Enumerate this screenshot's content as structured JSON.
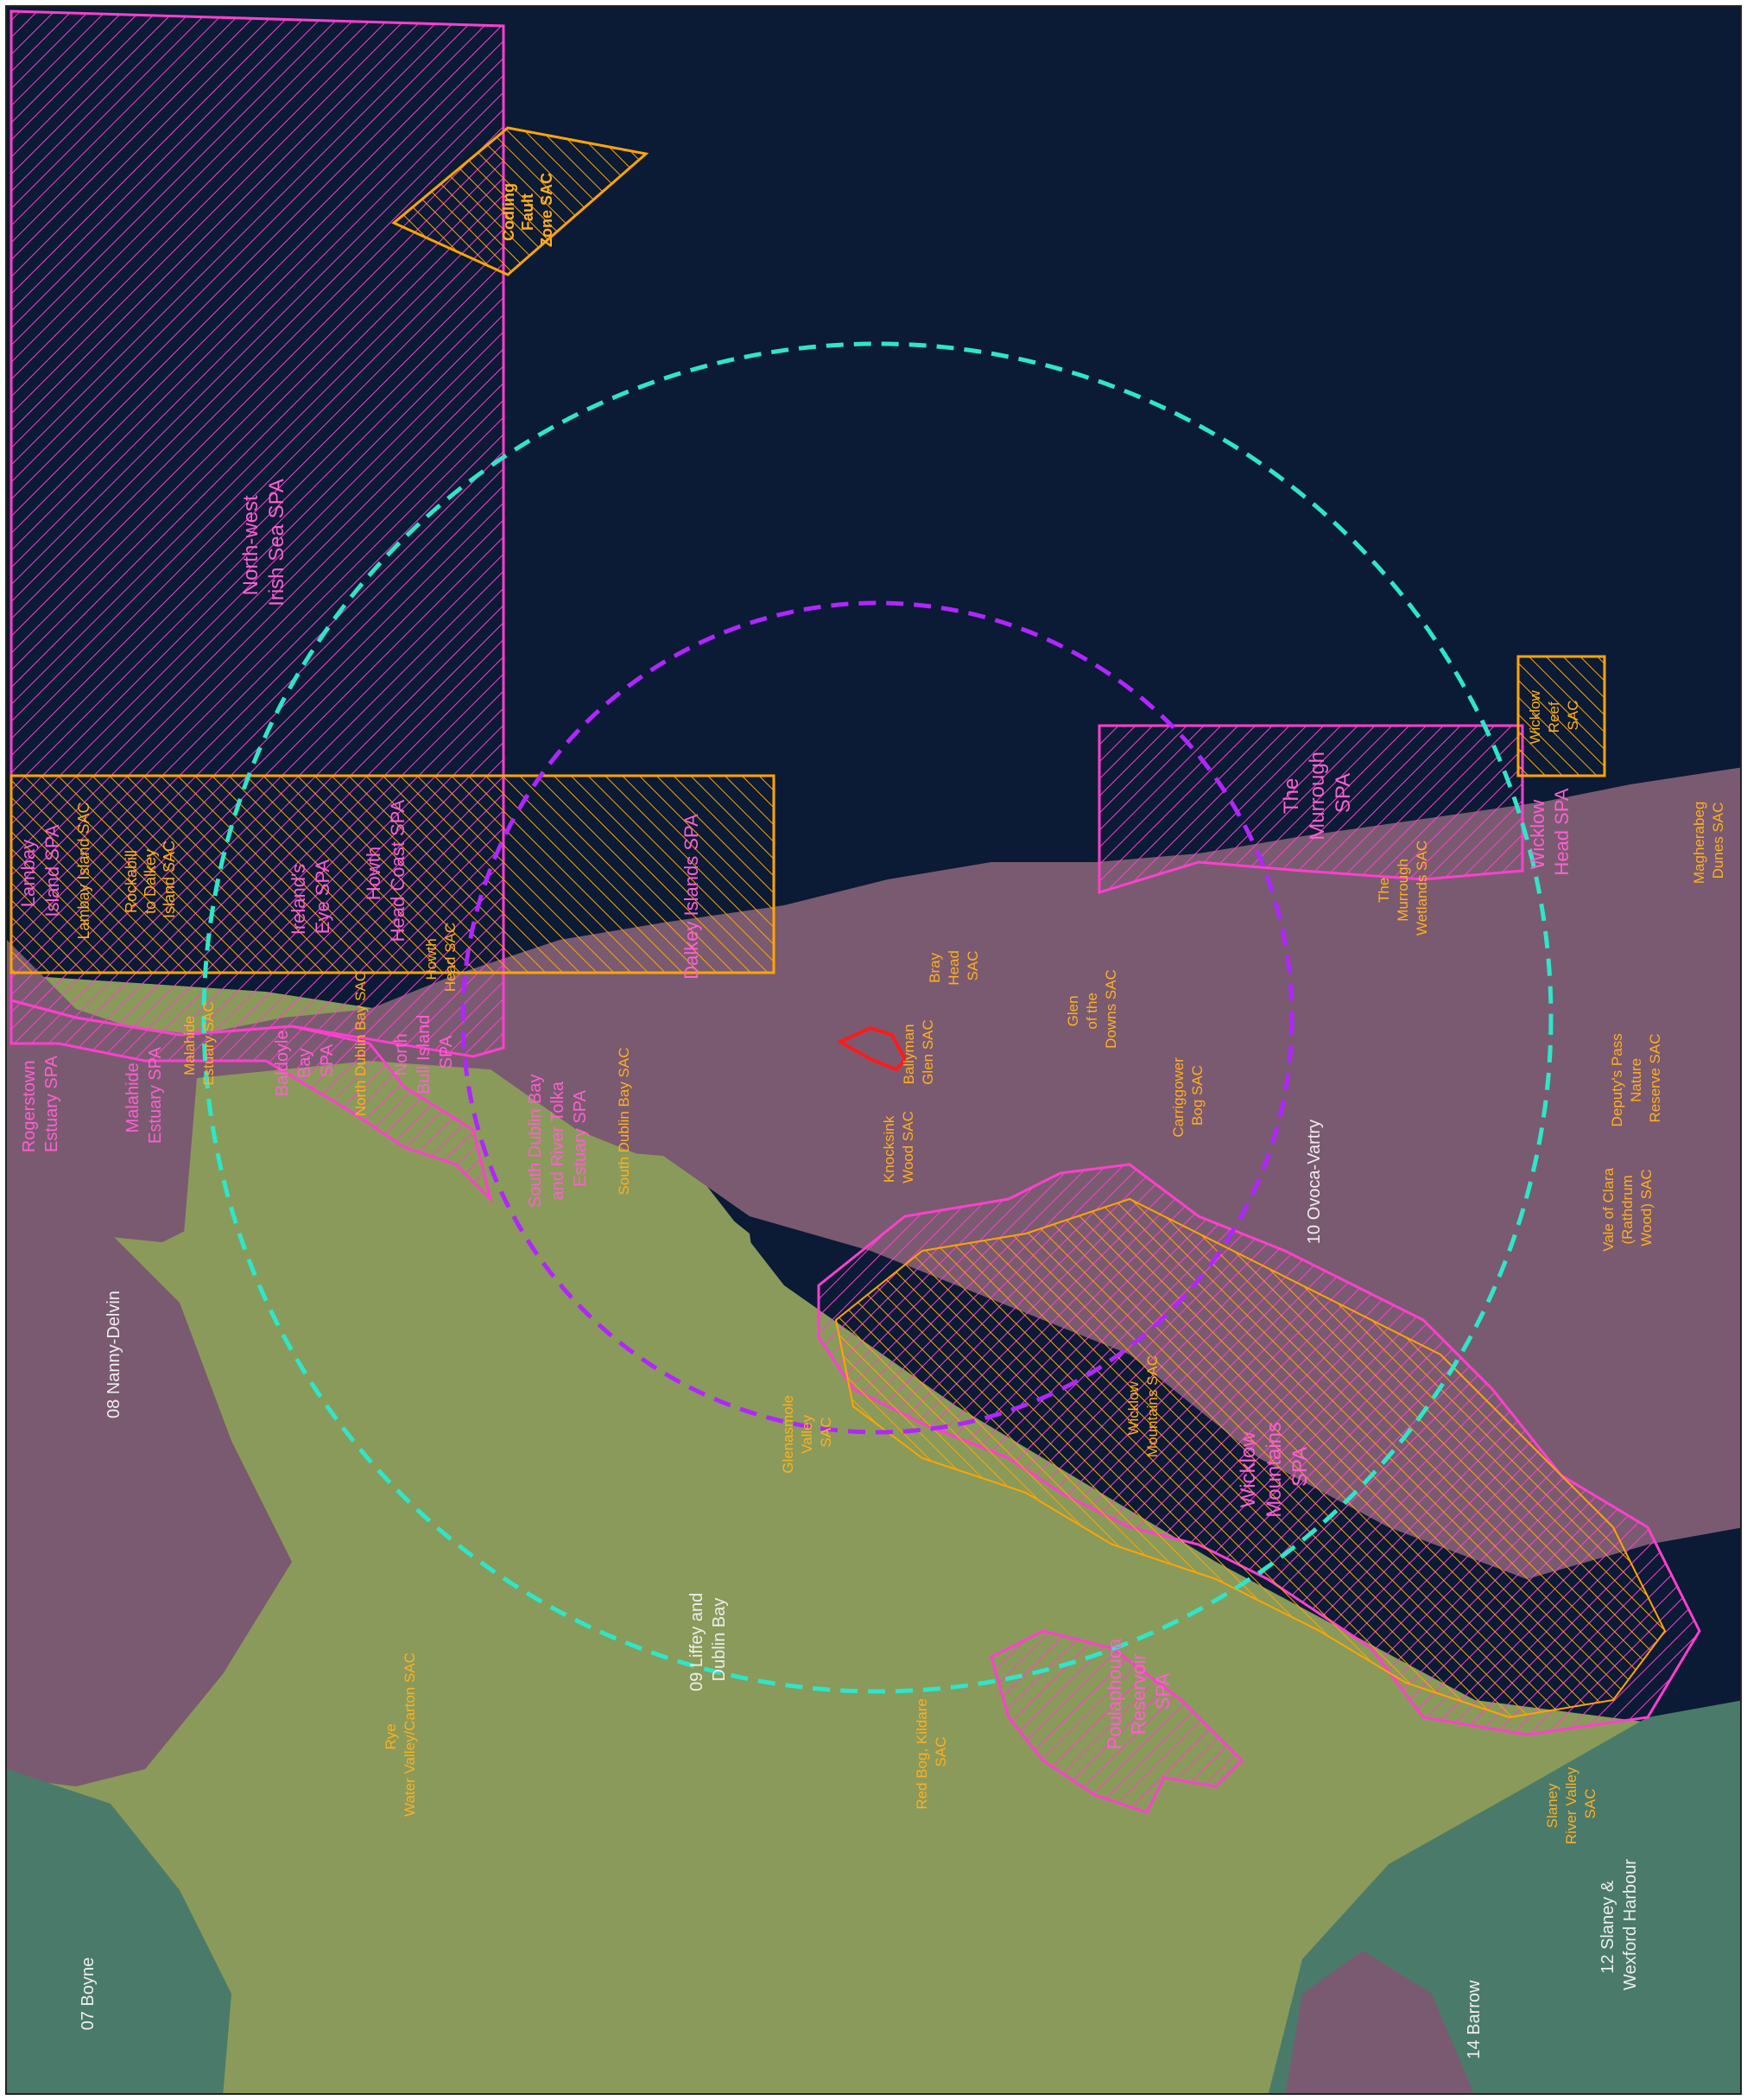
{
  "map": {
    "colors": {
      "sea": "#0b1a35",
      "land_green": "#8a9a5a",
      "land_purple": "#7a5a70",
      "land_teal": "#4a7a6a",
      "spa_outline": "#ff3fcf",
      "sac_outline": "#ffa500",
      "buffer_inner": "#b026ff",
      "buffer_outer": "#2ee6c8",
      "site_boundary": "#ff1a1a"
    },
    "spa_labels": {
      "north_west_irish_sea": [
        "North-west",
        "Irish Sea SPA"
      ],
      "lambay_island_spa": [
        "Lambay",
        "Island SPA"
      ],
      "irelands_eye_spa": [
        "Ireland's",
        "Eye SPA"
      ],
      "howth_head_coast_spa": [
        "Howth",
        "Head Coast SPA"
      ],
      "rogerstown": [
        "Rogerstown",
        "Estuary SPA"
      ],
      "malahide_spa": [
        "Malahide",
        "Estuary SPA"
      ],
      "baldoyle": [
        "Baldoyle",
        "Bay",
        "SPA"
      ],
      "north_bull": [
        "North",
        "Bull Island",
        "SPA"
      ],
      "south_dublin_bay_tolka": [
        "South Dublin Bay",
        "and River Tolka",
        "Estuary SPA"
      ],
      "dalkey_spa": [
        "Dalkey Islands SPA"
      ],
      "murrough_spa": [
        "The",
        "Murrough",
        "SPA"
      ],
      "wicklow_head_spa": [
        "Wicklow",
        "Head SPA"
      ],
      "wicklow_mountains_spa": [
        "Wicklow",
        "Mountains",
        "SPA"
      ],
      "poulaphouca": [
        "Poulaphouca",
        "Reservoir",
        "SPA"
      ]
    },
    "sac_labels": {
      "codling": [
        "Codling",
        "Fault",
        "Zone SAC"
      ],
      "lambay_island_sac": [
        "Lambay Island SAC"
      ],
      "rockabill": [
        "Rockabill",
        "to Dalkey",
        "Island SAC"
      ],
      "malahide_sac": [
        "Malahide",
        "Estuary SAC"
      ],
      "north_dublin_bay": [
        "North Dublin Bay SAC"
      ],
      "howth_head_sac": [
        "Howth",
        "Head SAC"
      ],
      "south_dublin_bay_sac": [
        "South Dublin Bay SAC"
      ],
      "bray_head": [
        "Bray",
        "Head",
        "SAC"
      ],
      "ballyman": [
        "Ballyman",
        "Glen SAC"
      ],
      "knocksink": [
        "Knocksink",
        "Wood SAC"
      ],
      "glen_downs": [
        "Glen",
        "of the",
        "Downs SAC"
      ],
      "carriggower": [
        "Carriggower",
        "Bog SAC"
      ],
      "murrough_wetlands": [
        "The",
        "Murrough",
        "Wetlands SAC"
      ],
      "wicklow_reef": [
        "Wicklow",
        "Reef",
        "SAC"
      ],
      "magherabeg": [
        "Magherabeg",
        "Dunes SAC"
      ],
      "deputys_pass": [
        "Deputy's Pass",
        "Nature",
        "Reserve SAC"
      ],
      "vale_clara": [
        "Vale of Clara",
        "(Rathdrum",
        "Wood) SAC"
      ],
      "glenasmole": [
        "Glenasmole",
        "Valley",
        "SAC"
      ],
      "wicklow_mountains_sac": [
        "Wicklow",
        "Mountains SAC"
      ],
      "red_bog": [
        "Red Bog, Kildare",
        "SAC"
      ],
      "rye_water": [
        "Rye",
        "Water Valley/Carton SAC"
      ],
      "slaney": [
        "Slaney",
        "River Valley",
        "SAC"
      ]
    },
    "catchment_labels": {
      "nanny": [
        "08 Nanny-Delvin"
      ],
      "liffey": [
        "09 Liffey and",
        "Dublin Bay"
      ],
      "ovoca": [
        "10 Ovoca-Vartry"
      ],
      "slaney_catch": [
        "12 Slaney &",
        "Wexford Harbour"
      ],
      "boyne": [
        "07 Boyne"
      ],
      "barrow": [
        "14 Barrow"
      ]
    }
  }
}
